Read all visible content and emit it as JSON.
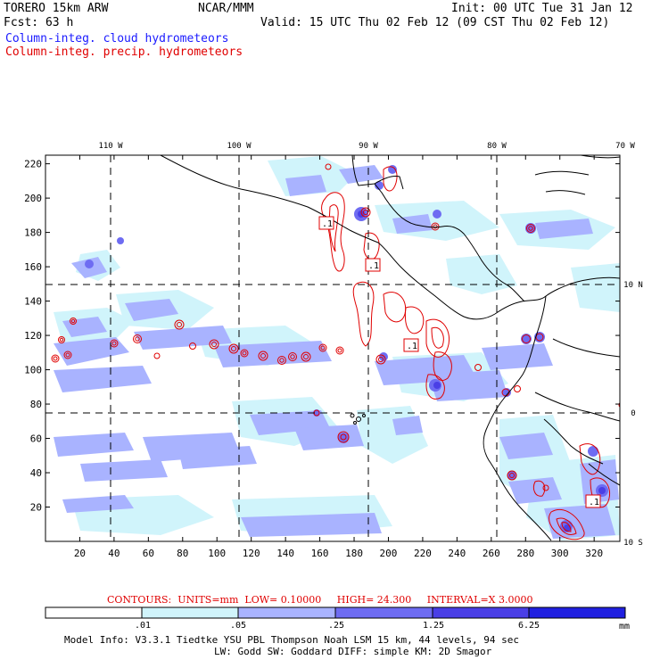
{
  "header": {
    "model": "TORERO  15km ARW",
    "org": "NCAR/MMM",
    "init": "Init: 00 UTC Tue 31 Jan 12",
    "fcst": "Fcst:   63 h",
    "valid": "Valid: 15 UTC Thu 02 Feb 12 (09 CST Thu 02 Feb 12)",
    "field1": "Column-integ. cloud hydrometeors",
    "field2": "Column-integ. precip. hydrometeors"
  },
  "map": {
    "lon_labels": [
      "110 W",
      "100 W",
      "90 W",
      "80 W",
      "70 W"
    ],
    "lat_labels_right": [
      "10 N",
      "0",
      "10 S"
    ],
    "y_ticks": [
      "220",
      "200",
      "180",
      "160",
      "140",
      "120",
      "100",
      "80",
      "60",
      "40",
      "20"
    ],
    "x_ticks": [
      "20",
      "40",
      "60",
      "80",
      "100",
      "120",
      "140",
      "160",
      "180",
      "200",
      "220",
      "240",
      "260",
      "280",
      "300",
      "320"
    ],
    "contour_labels": [
      ".1",
      ".1",
      ".1",
      ".1"
    ],
    "colors": {
      "lvl1": "#d0f4fb",
      "lvl2": "#a9b3ff",
      "lvl3": "#6e6cf2",
      "lvl4": "#4a3fe6",
      "lvl5": "#2020e0",
      "contour": "#e00000"
    }
  },
  "legend": {
    "contours_label": "CONTOURS:",
    "units": "UNITS=mm",
    "low": "LOW= 0.10000",
    "high": "HIGH=  24.300",
    "interval": "INTERVAL=X  3.0000",
    "thresholds": [
      ".01",
      ".05",
      ".25",
      "1.25",
      "6.25"
    ],
    "unit_label": "mm"
  },
  "footer": {
    "line1": "Model Info: V3.3.1   Tiedtke YSU PBL  Thompson    Noah LSM  15 km,   44 levels,   94 sec",
    "line2": "LW: Godd SW: Goddard DIFF: simple KM: 2D Smagor"
  }
}
